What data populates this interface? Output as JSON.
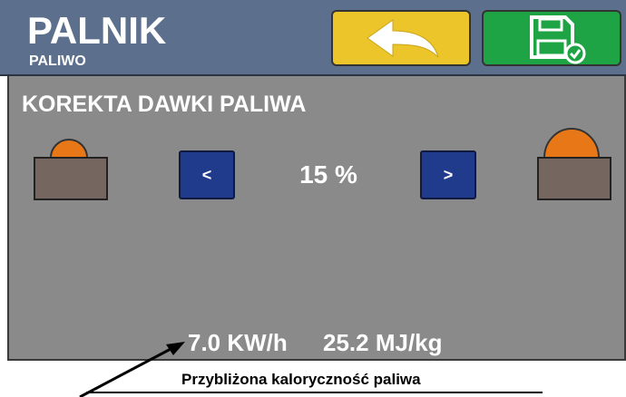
{
  "header": {
    "title": "PALNIK",
    "subtitle": "PALIWO"
  },
  "section": {
    "title": "KOREKTA DAWKI PALIWA",
    "decrease": "<",
    "value": "15 %",
    "increase": ">"
  },
  "footer": {
    "power": "7.0 KW/h",
    "energy": "25.2 MJ/kg"
  },
  "note": "Przybliżona kaloryczność paliwa"
}
